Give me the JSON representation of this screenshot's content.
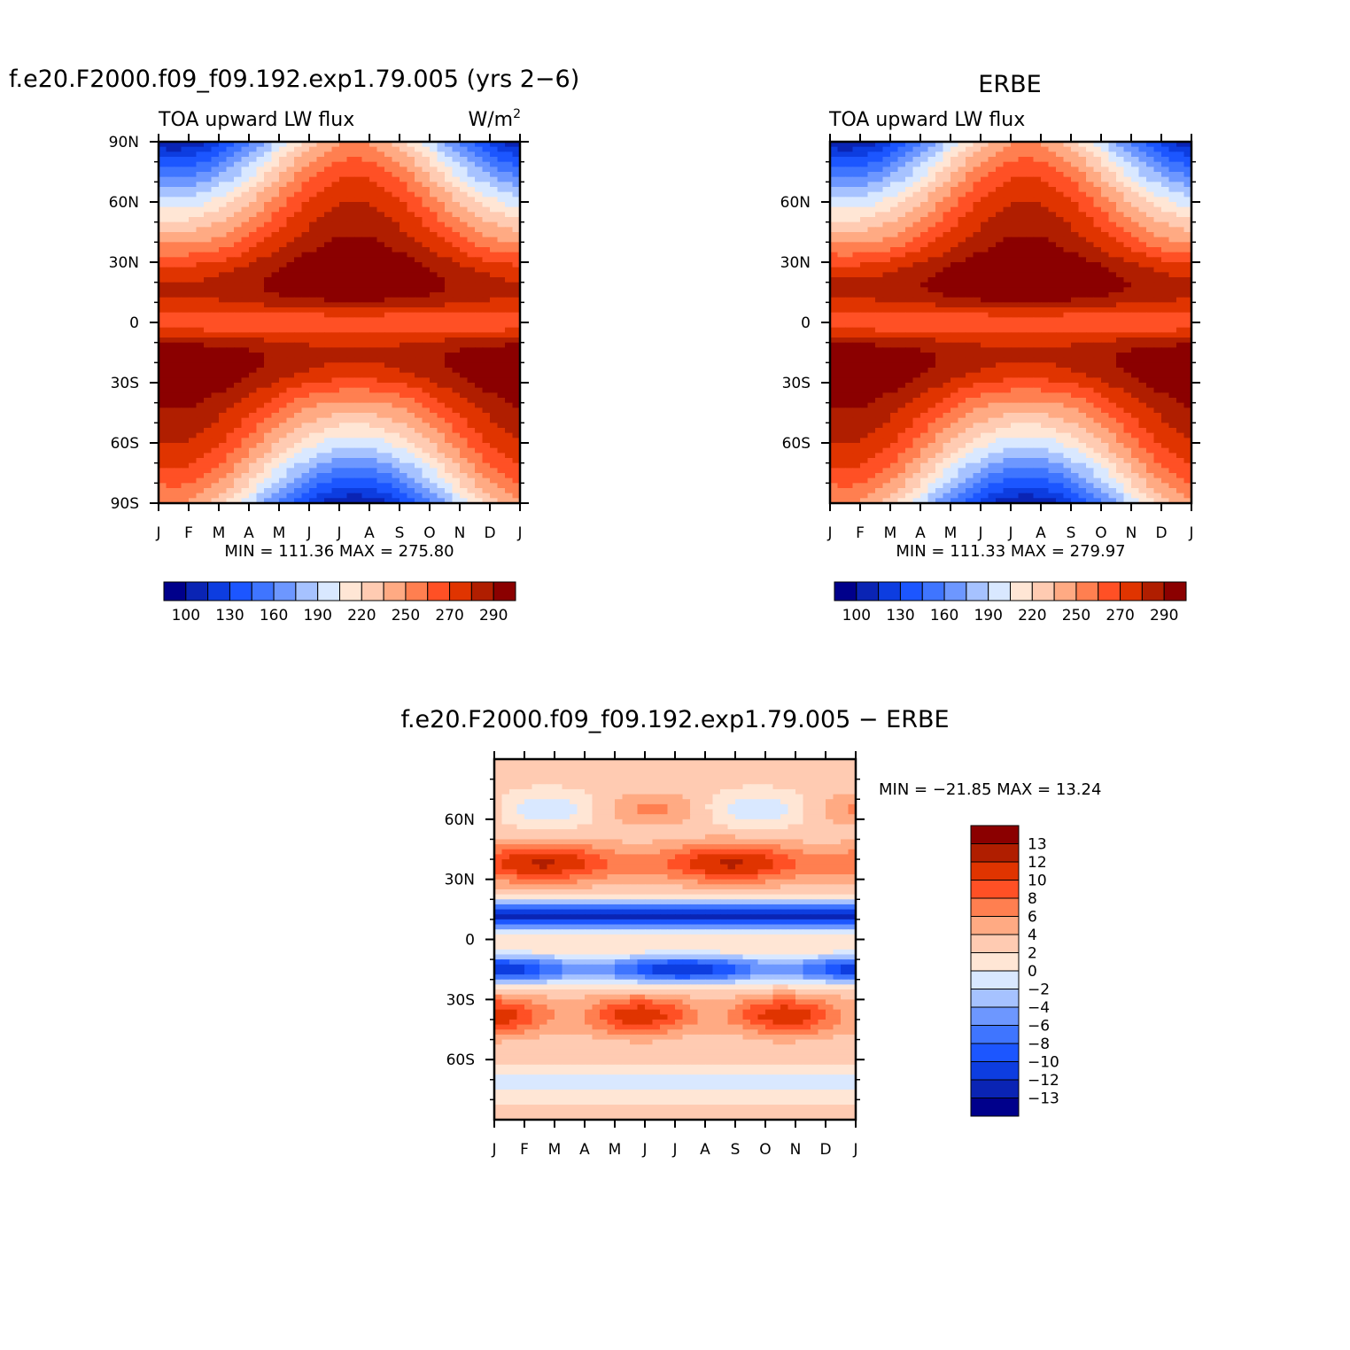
{
  "colors": {
    "palette15": [
      "#00008b",
      "#0a24b4",
      "#0d3de0",
      "#1c56ff",
      "#3f75ff",
      "#6d97ff",
      "#a6c2ff",
      "#d9e8ff",
      "#ffe6d5",
      "#ffcbb2",
      "#ffaa83",
      "#ff7f50",
      "#ff5025",
      "#e03400",
      "#b01e00",
      "#8b0000"
    ],
    "diff_palette": [
      "#00008b",
      "#0a24b4",
      "#0d3de0",
      "#1c56ff",
      "#3f75ff",
      "#6d97ff",
      "#a6c2ff",
      "#d9e8ff",
      "#ffe6d5",
      "#ffcbb2",
      "#ffaa83",
      "#ff7f50",
      "#ff5025",
      "#e03400",
      "#b01e00",
      "#8b0000"
    ],
    "axis": "#000000"
  },
  "panels": {
    "model": {
      "title": "f.e20.F2000.f09_f09.192.exp1.79.005 (yrs 2−6)",
      "subtitle_left": "TOA upward LW flux",
      "units_base": "W/m",
      "units_sup": "2",
      "stats": "MIN = 111.36 MAX = 275.80"
    },
    "obs": {
      "title": "ERBE",
      "subtitle_left": "TOA upward LW flux",
      "stats": "MIN = 111.33 MAX = 279.97"
    },
    "diff": {
      "title": "f.e20.F2000.f09_f09.192.exp1.79.005 − ERBE",
      "stats": "MIN = −21.85 MAX =  13.24"
    }
  },
  "chart_data": [
    {
      "type": "heatmap",
      "id": "model",
      "title": "f.e20.F2000.f09_f09.192.exp1.79.005 (yrs 2−6)",
      "variable": "TOA upward LW flux",
      "units": "W/m^2",
      "x_ticklabels": [
        "J",
        "F",
        "M",
        "A",
        "M",
        "J",
        "J",
        "A",
        "S",
        "O",
        "N",
        "D",
        "J"
      ],
      "y_ticks": [
        90,
        60,
        30,
        0,
        -30,
        -60,
        -90
      ],
      "y_ticklabels": [
        "90N",
        "60N",
        "30N",
        "0",
        "30S",
        "60S",
        "90S"
      ],
      "ylim": [
        -90,
        90
      ],
      "min": 111.36,
      "max": 275.8,
      "colorbar_levels": [
        100,
        110,
        120,
        130,
        140,
        150,
        160,
        170,
        180,
        190,
        200,
        210,
        220,
        230,
        240,
        250,
        260,
        270,
        280,
        290
      ],
      "colorbar_labels": [
        "100",
        "130",
        "160",
        "190",
        "220",
        "250",
        "270",
        "290"
      ]
    },
    {
      "type": "heatmap",
      "id": "obs",
      "title": "ERBE",
      "variable": "TOA upward LW flux",
      "x_ticklabels": [
        "J",
        "F",
        "M",
        "A",
        "M",
        "J",
        "J",
        "A",
        "S",
        "O",
        "N",
        "D",
        "J"
      ],
      "y_ticks": [
        60,
        30,
        0,
        -30,
        -60
      ],
      "y_ticklabels": [
        "60N",
        "30N",
        "0",
        "30S",
        "60S"
      ],
      "ylim": [
        -90,
        90
      ],
      "min": 111.33,
      "max": 279.97,
      "colorbar_labels": [
        "100",
        "130",
        "160",
        "190",
        "220",
        "250",
        "270",
        "290"
      ]
    },
    {
      "type": "heatmap",
      "id": "diff",
      "title": "f.e20.F2000.f09_f09.192.exp1.79.005 − ERBE",
      "x_ticklabels": [
        "J",
        "F",
        "M",
        "A",
        "M",
        "J",
        "J",
        "A",
        "S",
        "O",
        "N",
        "D",
        "J"
      ],
      "y_ticks": [
        60,
        30,
        0,
        -30,
        -60
      ],
      "y_ticklabels": [
        "60N",
        "30N",
        "0",
        "30S",
        "60S"
      ],
      "ylim": [
        -90,
        90
      ],
      "min": -21.85,
      "max": 13.24,
      "colorbar_labels": [
        "13",
        "12",
        "10",
        "8",
        "6",
        "4",
        "2",
        "0",
        "−2",
        "−4",
        "−6",
        "−8",
        "−10",
        "−12",
        "−13"
      ]
    }
  ]
}
